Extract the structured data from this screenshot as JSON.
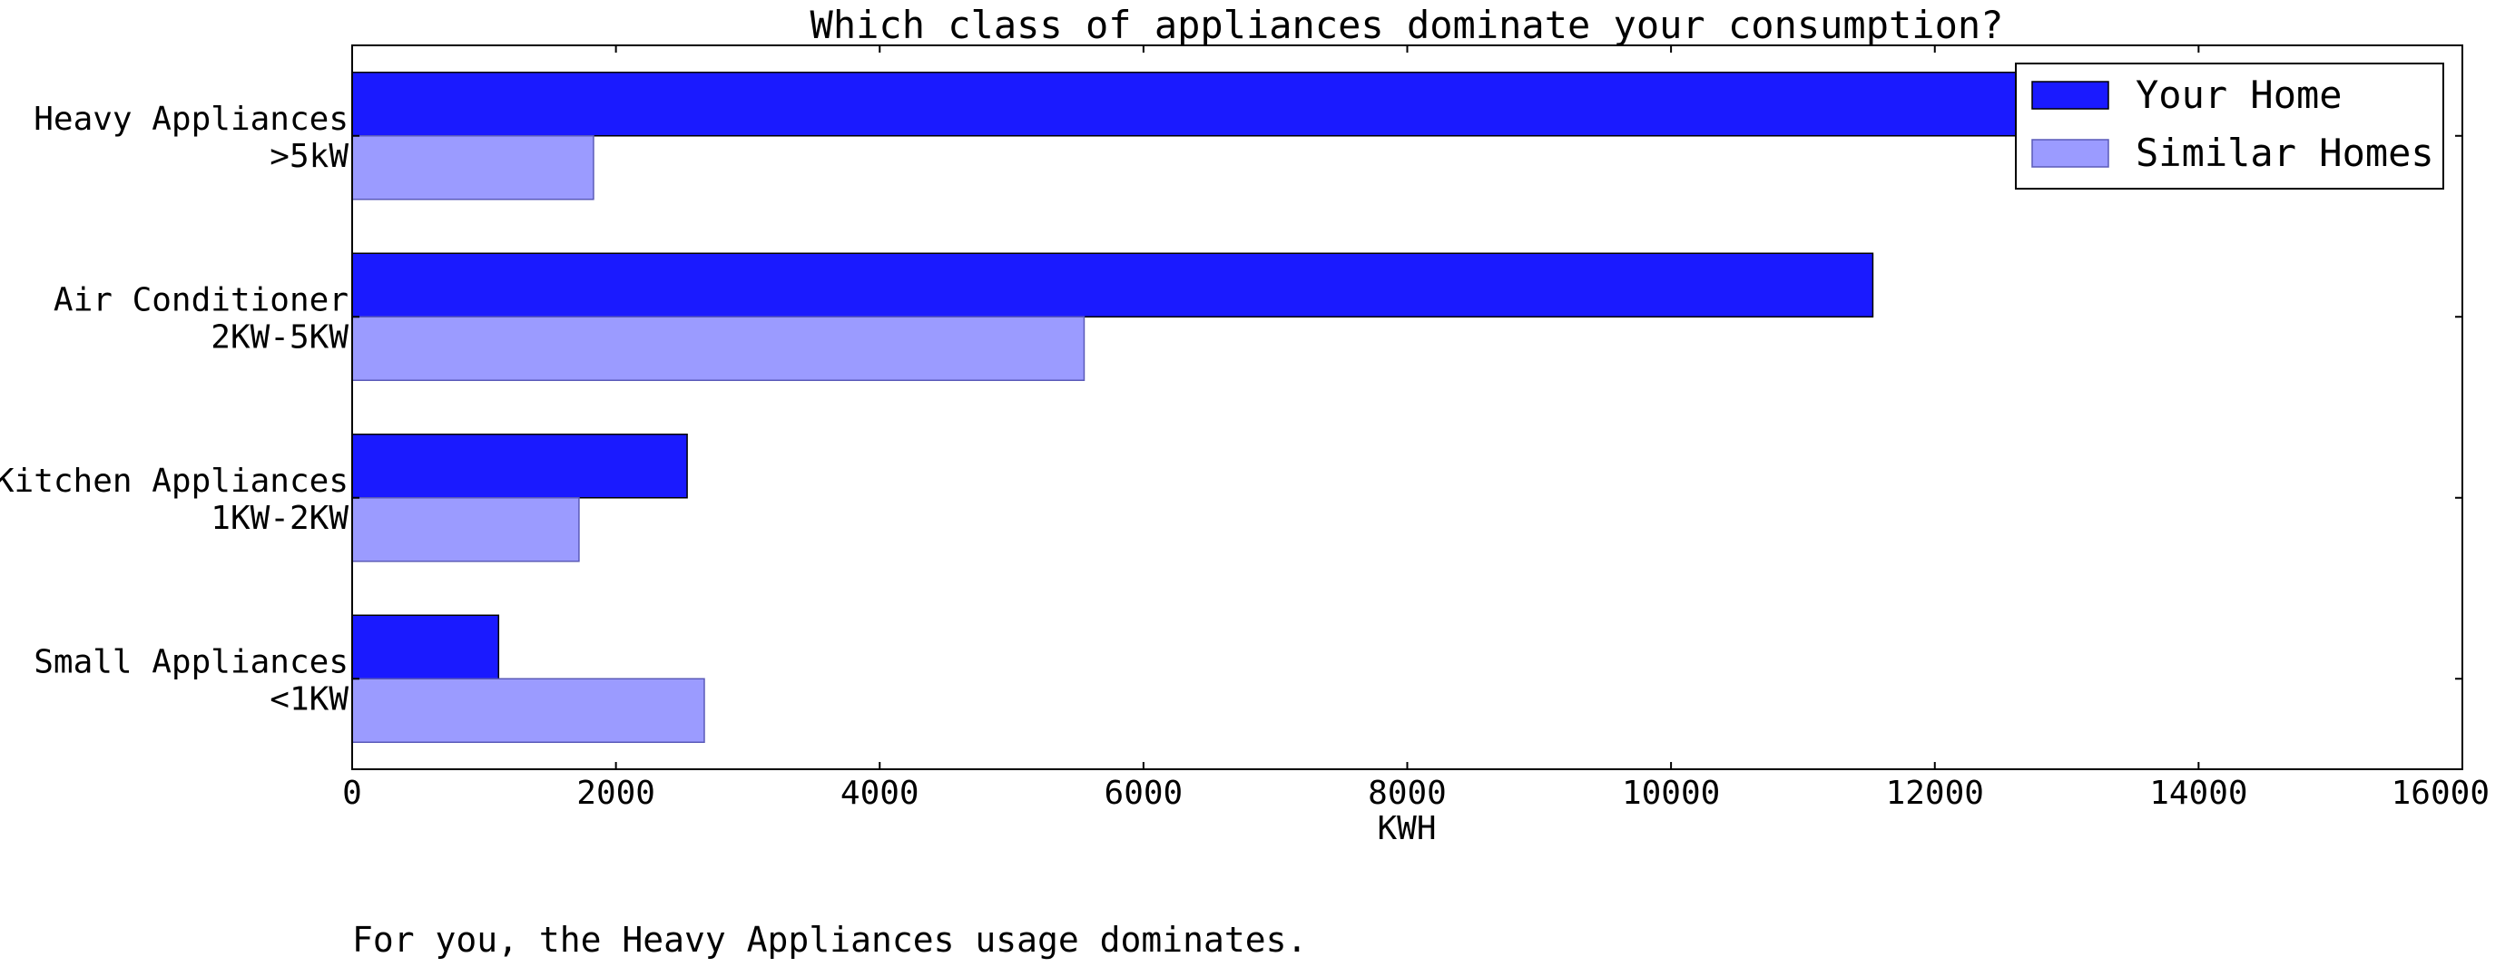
{
  "caption": "For you, the Heavy Appliances usage dominates.",
  "chart_data": {
    "type": "bar",
    "orientation": "horizontal",
    "title": "Which class of appliances dominate your consumption?",
    "xlabel": "KWH",
    "ylabel": "",
    "xlim": [
      0,
      16000
    ],
    "xticks": [
      0,
      2000,
      4000,
      6000,
      8000,
      10000,
      12000,
      14000,
      16000
    ],
    "categories": [
      [
        "Heavy Appliances",
        ">5kW"
      ],
      [
        "Air Conditioner",
        "2KW-5KW"
      ],
      [
        "Kitchen Appliances",
        "1KW-2KW"
      ],
      [
        "Small Appliances",
        "<1KW"
      ]
    ],
    "series": [
      {
        "name": "Your Home",
        "color": "#1a1aff",
        "values": [
          13500,
          11530,
          2540,
          1110
        ]
      },
      {
        "name": "Similar Homes",
        "color": "#9b9bff",
        "values": [
          1830,
          5550,
          1720,
          2670
        ]
      }
    ],
    "legend": "top-right",
    "grid": false
  }
}
